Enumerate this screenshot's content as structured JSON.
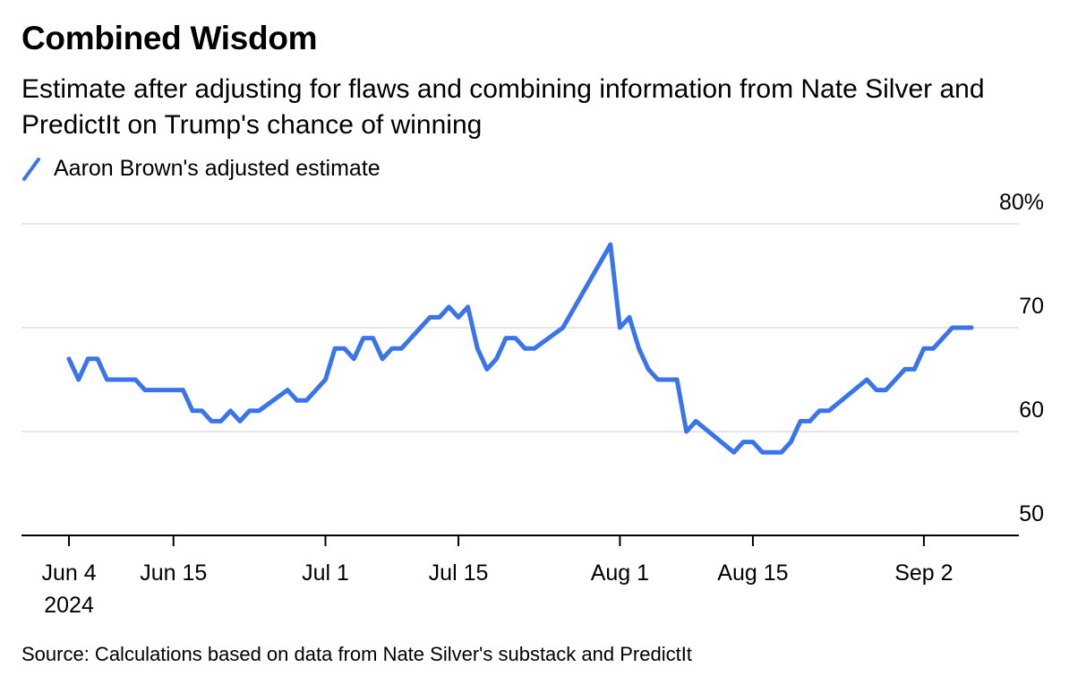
{
  "header": {
    "title": "Combined Wisdom",
    "subtitle": "Estimate after adjusting for flaws and combining information from Nate Silver and PredictIt on Trump's chance of winning"
  },
  "legend": {
    "label": "Aaron Brown's adjusted estimate"
  },
  "footer": {
    "source": "Source: Calculations based on data from Nate Silver's substack and PredictIt"
  },
  "colors": {
    "series": "#3a73ee",
    "grid": "#e6e6e6",
    "axis": "#000000"
  },
  "chart_data": {
    "type": "line",
    "title": "Combined Wisdom",
    "subtitle": "Estimate after adjusting for flaws and combining information from Nate Silver and PredictIt on Trump's chance of winning",
    "xlabel": "",
    "ylabel": "",
    "ylim": [
      50,
      80
    ],
    "y_ticks": [
      {
        "value": 80,
        "label": "80%"
      },
      {
        "value": 70,
        "label": "70"
      },
      {
        "value": 60,
        "label": "60"
      },
      {
        "value": 50,
        "label": "50"
      }
    ],
    "x_ticks": [
      {
        "date": "2024-06-04",
        "label": "Jun 4",
        "sublabel": "2024"
      },
      {
        "date": "2024-06-15",
        "label": "Jun 15"
      },
      {
        "date": "2024-07-01",
        "label": "Jul 1"
      },
      {
        "date": "2024-07-15",
        "label": "Jul 15"
      },
      {
        "date": "2024-08-01",
        "label": "Aug 1"
      },
      {
        "date": "2024-08-15",
        "label": "Aug 15"
      },
      {
        "date": "2024-09-02",
        "label": "Sep 2"
      }
    ],
    "xlim": [
      "2024-05-30",
      "2024-09-12"
    ],
    "grid": true,
    "legend_position": "top-left",
    "series": [
      {
        "name": "Aaron Brown's adjusted estimate",
        "points": [
          [
            "2024-06-04",
            67
          ],
          [
            "2024-06-05",
            65
          ],
          [
            "2024-06-06",
            67
          ],
          [
            "2024-06-07",
            67
          ],
          [
            "2024-06-08",
            65
          ],
          [
            "2024-06-11",
            65
          ],
          [
            "2024-06-12",
            64
          ],
          [
            "2024-06-16",
            64
          ],
          [
            "2024-06-17",
            62
          ],
          [
            "2024-06-18",
            62
          ],
          [
            "2024-06-19",
            61
          ],
          [
            "2024-06-20",
            61
          ],
          [
            "2024-06-21",
            62
          ],
          [
            "2024-06-22",
            61
          ],
          [
            "2024-06-23",
            62
          ],
          [
            "2024-06-24",
            62
          ],
          [
            "2024-06-27",
            64
          ],
          [
            "2024-06-28",
            63
          ],
          [
            "2024-06-29",
            63
          ],
          [
            "2024-07-01",
            65
          ],
          [
            "2024-07-02",
            68
          ],
          [
            "2024-07-03",
            68
          ],
          [
            "2024-07-04",
            67
          ],
          [
            "2024-07-05",
            69
          ],
          [
            "2024-07-06",
            69
          ],
          [
            "2024-07-07",
            67
          ],
          [
            "2024-07-08",
            68
          ],
          [
            "2024-07-09",
            68
          ],
          [
            "2024-07-12",
            71
          ],
          [
            "2024-07-13",
            71
          ],
          [
            "2024-07-14",
            72
          ],
          [
            "2024-07-15",
            71
          ],
          [
            "2024-07-16",
            72
          ],
          [
            "2024-07-17",
            68
          ],
          [
            "2024-07-18",
            66
          ],
          [
            "2024-07-19",
            67
          ],
          [
            "2024-07-20",
            69
          ],
          [
            "2024-07-21",
            69
          ],
          [
            "2024-07-22",
            68
          ],
          [
            "2024-07-23",
            68
          ],
          [
            "2024-07-26",
            70
          ],
          [
            "2024-07-31",
            78
          ],
          [
            "2024-08-01",
            70
          ],
          [
            "2024-08-02",
            71
          ],
          [
            "2024-08-03",
            68
          ],
          [
            "2024-08-04",
            66
          ],
          [
            "2024-08-05",
            65
          ],
          [
            "2024-08-07",
            65
          ],
          [
            "2024-08-08",
            60
          ],
          [
            "2024-08-09",
            61
          ],
          [
            "2024-08-13",
            58
          ],
          [
            "2024-08-14",
            59
          ],
          [
            "2024-08-15",
            59
          ],
          [
            "2024-08-16",
            58
          ],
          [
            "2024-08-18",
            58
          ],
          [
            "2024-08-19",
            59
          ],
          [
            "2024-08-20",
            61
          ],
          [
            "2024-08-21",
            61
          ],
          [
            "2024-08-22",
            62
          ],
          [
            "2024-08-23",
            62
          ],
          [
            "2024-08-27",
            65
          ],
          [
            "2024-08-28",
            64
          ],
          [
            "2024-08-29",
            64
          ],
          [
            "2024-08-30",
            65
          ],
          [
            "2024-08-31",
            66
          ],
          [
            "2024-09-01",
            66
          ],
          [
            "2024-09-02",
            68
          ],
          [
            "2024-09-03",
            68
          ],
          [
            "2024-09-05",
            70
          ],
          [
            "2024-09-06",
            70
          ],
          [
            "2024-09-07",
            70
          ]
        ]
      }
    ]
  }
}
